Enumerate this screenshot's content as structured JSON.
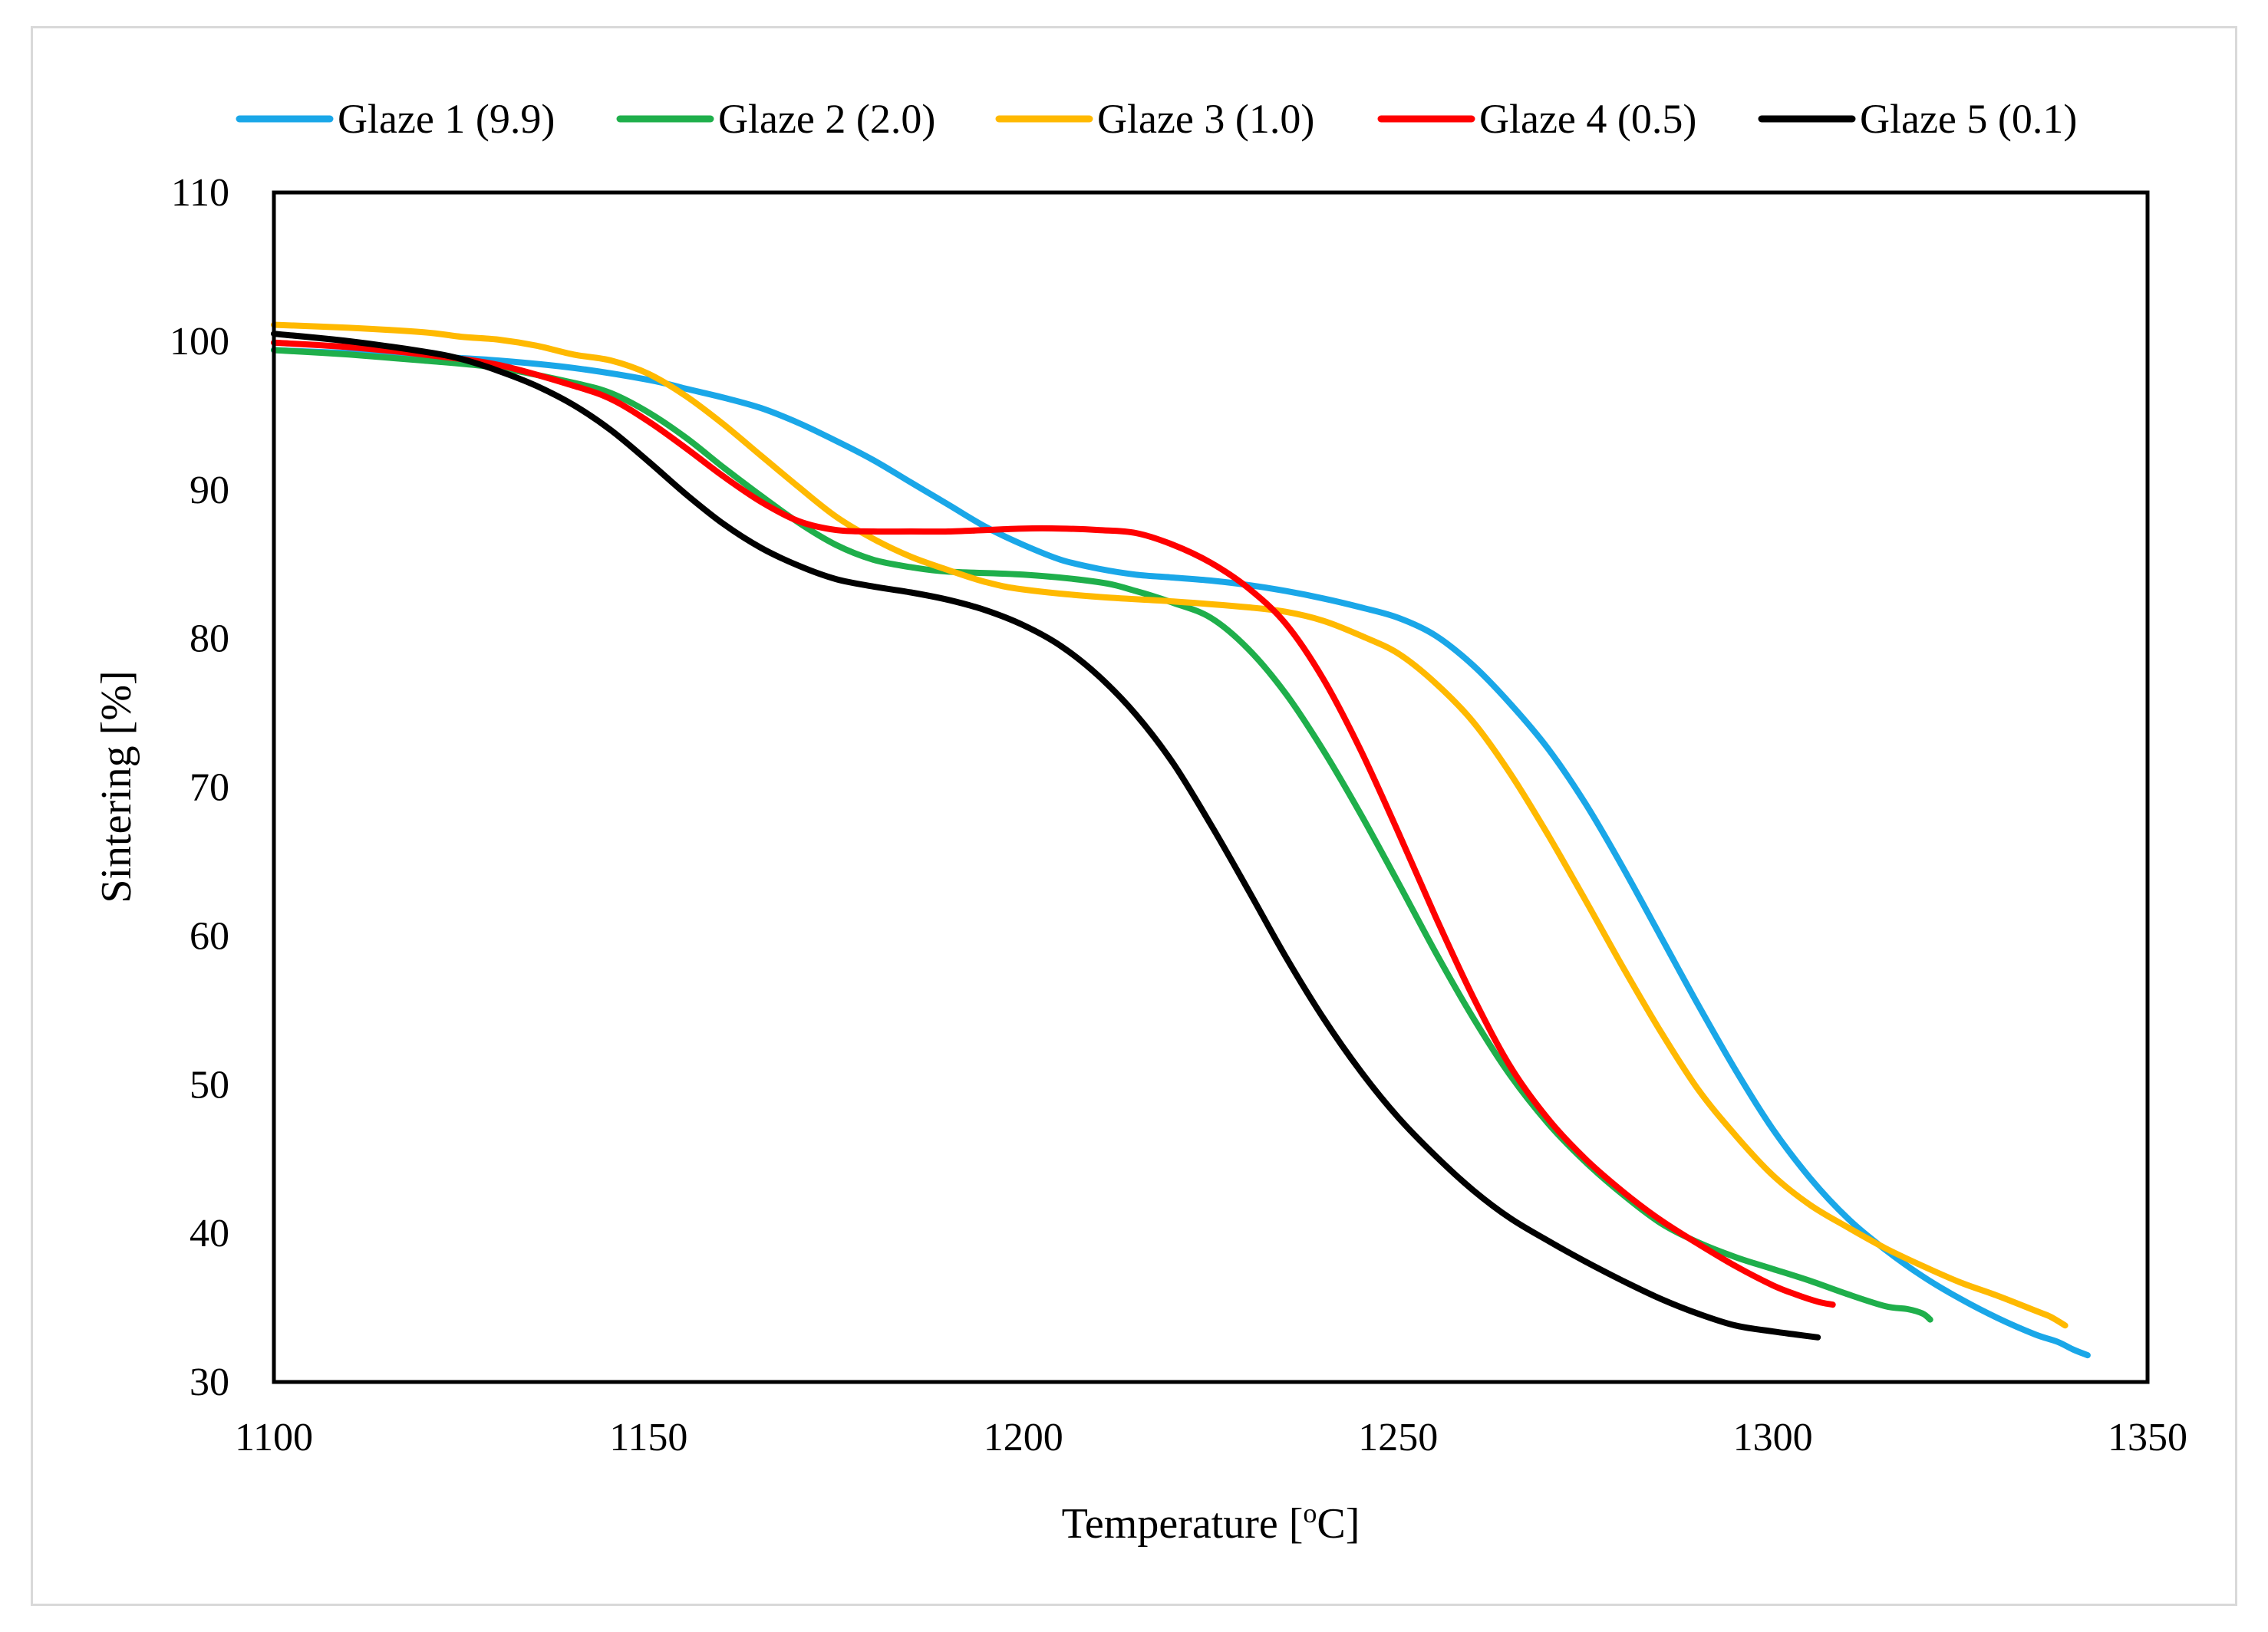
{
  "chart_data": {
    "type": "line",
    "title": "",
    "xlabel_main": "Temperature [",
    "xlabel_sup": "o",
    "xlabel_tail": "C]",
    "ylabel": "Sintering [%]",
    "xlim": [
      1100,
      1350
    ],
    "ylim": [
      30,
      110
    ],
    "xticks": [
      1100,
      1150,
      1200,
      1250,
      1300,
      1350
    ],
    "yticks": [
      30,
      40,
      50,
      60,
      70,
      80,
      90,
      100,
      110
    ],
    "grid": false,
    "legend_position": "top",
    "series": [
      {
        "name": "Glaze 1 (9.9)",
        "color": "#1aa7e8",
        "x": [
          1100,
          1110,
          1120,
          1130,
          1140,
          1150,
          1155,
          1160,
          1165,
          1170,
          1175,
          1180,
          1185,
          1190,
          1195,
          1200,
          1205,
          1210,
          1215,
          1220,
          1225,
          1230,
          1235,
          1240,
          1245,
          1250,
          1255,
          1260,
          1265,
          1270,
          1275,
          1280,
          1285,
          1290,
          1295,
          1300,
          1305,
          1310,
          1315,
          1320,
          1325,
          1330,
          1335,
          1338,
          1340,
          1342
        ],
        "y": [
          99.4,
          99.2,
          99.0,
          98.7,
          98.2,
          97.4,
          96.8,
          96.2,
          95.5,
          94.5,
          93.3,
          92.0,
          90.5,
          89.0,
          87.5,
          86.3,
          85.3,
          84.7,
          84.3,
          84.1,
          83.9,
          83.6,
          83.2,
          82.7,
          82.1,
          81.4,
          80.2,
          78.2,
          75.6,
          72.6,
          68.9,
          64.6,
          60.0,
          55.4,
          51.0,
          47.0,
          43.7,
          41.0,
          38.9,
          37.1,
          35.6,
          34.3,
          33.2,
          32.7,
          32.2,
          31.8
        ]
      },
      {
        "name": "Glaze 2 (2.0)",
        "color": "#1faf4b",
        "x": [
          1100,
          1110,
          1120,
          1130,
          1140,
          1145,
          1150,
          1155,
          1160,
          1165,
          1170,
          1175,
          1180,
          1185,
          1190,
          1200,
          1210,
          1215,
          1220,
          1225,
          1230,
          1235,
          1240,
          1245,
          1250,
          1255,
          1260,
          1265,
          1270,
          1275,
          1280,
          1285,
          1290,
          1295,
          1300,
          1305,
          1310,
          1315,
          1318,
          1320,
          1321
        ],
        "y": [
          99.4,
          99.1,
          98.7,
          98.2,
          97.2,
          96.5,
          95.2,
          93.5,
          91.5,
          89.6,
          87.8,
          86.3,
          85.3,
          84.8,
          84.5,
          84.3,
          83.8,
          83.2,
          82.4,
          81.4,
          79.3,
          76.3,
          72.5,
          68.2,
          63.6,
          58.9,
          54.5,
          50.6,
          47.4,
          44.8,
          42.6,
          40.7,
          39.4,
          38.4,
          37.6,
          36.8,
          35.9,
          35.1,
          34.9,
          34.6,
          34.2
        ]
      },
      {
        "name": "Glaze 3 (1.0)",
        "color": "#ffb900",
        "x": [
          1100,
          1110,
          1120,
          1125,
          1130,
          1135,
          1140,
          1145,
          1150,
          1155,
          1160,
          1165,
          1170,
          1175,
          1180,
          1185,
          1190,
          1195,
          1200,
          1210,
          1220,
          1230,
          1235,
          1240,
          1245,
          1250,
          1255,
          1260,
          1265,
          1270,
          1275,
          1280,
          1285,
          1290,
          1295,
          1300,
          1305,
          1310,
          1315,
          1320,
          1325,
          1330,
          1335,
          1337,
          1339
        ],
        "y": [
          101.1,
          100.9,
          100.6,
          100.3,
          100.1,
          99.7,
          99.1,
          98.7,
          97.8,
          96.3,
          94.4,
          92.3,
          90.2,
          88.2,
          86.7,
          85.5,
          84.6,
          83.8,
          83.3,
          82.8,
          82.5,
          82.1,
          81.8,
          81.2,
          80.2,
          79.0,
          77.0,
          74.4,
          70.9,
          66.8,
          62.4,
          57.9,
          53.6,
          49.7,
          46.6,
          43.9,
          41.9,
          40.4,
          39.0,
          37.8,
          36.7,
          35.8,
          34.8,
          34.4,
          33.8
        ]
      },
      {
        "name": "Glaze 4 (0.5)",
        "color": "#ff0000",
        "x": [
          1100,
          1110,
          1120,
          1130,
          1140,
          1145,
          1150,
          1155,
          1160,
          1165,
          1170,
          1175,
          1180,
          1185,
          1190,
          1195,
          1200,
          1205,
          1210,
          1215,
          1220,
          1225,
          1230,
          1235,
          1240,
          1245,
          1250,
          1255,
          1260,
          1265,
          1270,
          1275,
          1280,
          1285,
          1290,
          1295,
          1300,
          1303,
          1306,
          1308
        ],
        "y": [
          99.9,
          99.6,
          99.1,
          98.4,
          97.0,
          96.1,
          94.6,
          92.8,
          90.9,
          89.2,
          87.9,
          87.3,
          87.2,
          87.2,
          87.2,
          87.3,
          87.4,
          87.4,
          87.3,
          87.1,
          86.3,
          85.1,
          83.4,
          81.0,
          77.3,
          72.5,
          67.0,
          61.3,
          55.9,
          51.2,
          47.7,
          45.0,
          42.8,
          40.9,
          39.3,
          37.8,
          36.5,
          35.9,
          35.4,
          35.2
        ]
      },
      {
        "name": "Glaze 5 (0.1)",
        "color": "#000000",
        "x": [
          1100,
          1110,
          1120,
          1125,
          1130,
          1135,
          1140,
          1145,
          1150,
          1155,
          1160,
          1165,
          1170,
          1175,
          1180,
          1185,
          1190,
          1195,
          1200,
          1205,
          1210,
          1215,
          1220,
          1225,
          1230,
          1235,
          1240,
          1245,
          1250,
          1255,
          1260,
          1265,
          1270,
          1275,
          1280,
          1285,
          1290,
          1295,
          1300,
          1303,
          1306
        ],
        "y": [
          100.5,
          100.0,
          99.3,
          98.8,
          98.0,
          97.0,
          95.7,
          94.0,
          91.9,
          89.7,
          87.7,
          86.1,
          84.9,
          84.0,
          83.5,
          83.1,
          82.6,
          81.9,
          80.9,
          79.5,
          77.5,
          74.9,
          71.6,
          67.5,
          63.1,
          58.6,
          54.5,
          50.9,
          47.8,
          45.2,
          42.9,
          41.0,
          39.5,
          38.1,
          36.8,
          35.6,
          34.6,
          33.8,
          33.4,
          33.2,
          33.0
        ]
      }
    ]
  }
}
